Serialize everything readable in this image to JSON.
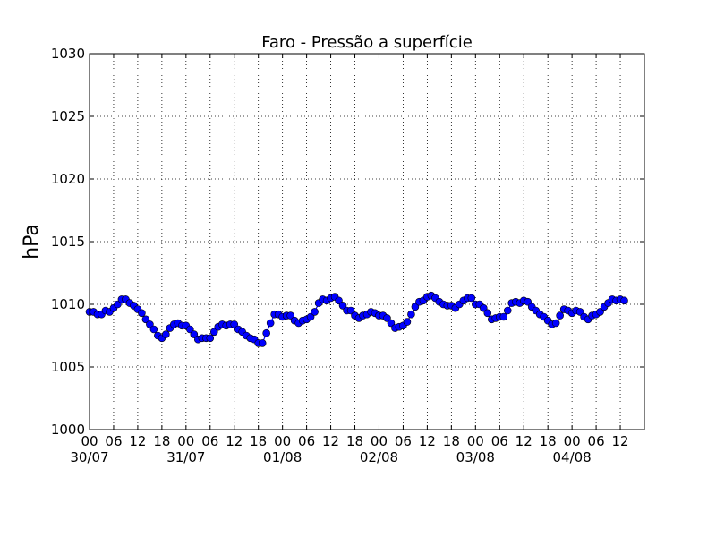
{
  "chart_data": {
    "type": "line",
    "title": "Faro - Pressão a superfície",
    "ylabel": "hPa",
    "xlabel": "",
    "ylim": [
      1000,
      1030
    ],
    "yticks": [
      1000,
      1005,
      1010,
      1015,
      1020,
      1025,
      1030
    ],
    "xlim_hours": [
      0,
      138
    ],
    "grid": true,
    "marker_color": "#0000ff",
    "line_color": "#0000ff",
    "xtick_labels": [
      "00",
      "06",
      "12",
      "18",
      "00",
      "06",
      "12",
      "18",
      "00",
      "06",
      "12",
      "18",
      "00",
      "06",
      "12",
      "18",
      "00",
      "06",
      "12",
      "18",
      "00",
      "06",
      "12"
    ],
    "date_labels": [
      "30/07",
      "31/07",
      "01/08",
      "02/08",
      "03/08",
      "04/08"
    ],
    "series": [
      {
        "points": [
          [
            0,
            1009.4
          ],
          [
            1,
            1009.4
          ],
          [
            2,
            1009.2
          ],
          [
            3,
            1009.2
          ],
          [
            4,
            1009.5
          ],
          [
            5,
            1009.4
          ],
          [
            6,
            1009.7
          ],
          [
            7,
            1010.0
          ],
          [
            8,
            1010.4
          ],
          [
            9,
            1010.4
          ],
          [
            10,
            1010.1
          ],
          [
            11,
            1009.9
          ],
          [
            12,
            1009.6
          ],
          [
            13,
            1009.3
          ],
          [
            14,
            1008.8
          ],
          [
            15,
            1008.4
          ],
          [
            16,
            1008.0
          ],
          [
            17,
            1007.5
          ],
          [
            18,
            1007.3
          ],
          [
            19,
            1007.6
          ],
          [
            20,
            1008.1
          ],
          [
            21,
            1008.4
          ],
          [
            22,
            1008.5
          ],
          [
            23,
            1008.3
          ],
          [
            24,
            1008.3
          ],
          [
            25,
            1008.0
          ],
          [
            26,
            1007.6
          ],
          [
            27,
            1007.2
          ],
          [
            28,
            1007.3
          ],
          [
            29,
            1007.3
          ],
          [
            30,
            1007.3
          ],
          [
            31,
            1007.8
          ],
          [
            32,
            1008.2
          ],
          [
            33,
            1008.4
          ],
          [
            34,
            1008.3
          ],
          [
            35,
            1008.4
          ],
          [
            36,
            1008.4
          ],
          [
            37,
            1008.0
          ],
          [
            38,
            1007.8
          ],
          [
            39,
            1007.5
          ],
          [
            40,
            1007.3
          ],
          [
            41,
            1007.2
          ],
          [
            42,
            1006.9
          ],
          [
            43,
            1006.9
          ],
          [
            44,
            1007.7
          ],
          [
            45,
            1008.5
          ],
          [
            46,
            1009.2
          ],
          [
            47,
            1009.2
          ],
          [
            48,
            1009.0
          ],
          [
            49,
            1009.1
          ],
          [
            50,
            1009.1
          ],
          [
            51,
            1008.7
          ],
          [
            52,
            1008.5
          ],
          [
            53,
            1008.7
          ],
          [
            54,
            1008.8
          ],
          [
            55,
            1009.0
          ],
          [
            56,
            1009.4
          ],
          [
            57,
            1010.1
          ],
          [
            58,
            1010.4
          ],
          [
            59,
            1010.3
          ],
          [
            60,
            1010.5
          ],
          [
            61,
            1010.6
          ],
          [
            62,
            1010.3
          ],
          [
            63,
            1009.9
          ],
          [
            64,
            1009.5
          ],
          [
            65,
            1009.5
          ],
          [
            66,
            1009.1
          ],
          [
            67,
            1008.9
          ],
          [
            68,
            1009.1
          ],
          [
            69,
            1009.2
          ],
          [
            70,
            1009.4
          ],
          [
            71,
            1009.3
          ],
          [
            72,
            1009.1
          ],
          [
            73,
            1009.1
          ],
          [
            74,
            1008.9
          ],
          [
            75,
            1008.5
          ],
          [
            76,
            1008.1
          ],
          [
            77,
            1008.2
          ],
          [
            78,
            1008.3
          ],
          [
            79,
            1008.6
          ],
          [
            80,
            1009.2
          ],
          [
            81,
            1009.8
          ],
          [
            82,
            1010.2
          ],
          [
            83,
            1010.3
          ],
          [
            84,
            1010.6
          ],
          [
            85,
            1010.7
          ],
          [
            86,
            1010.5
          ],
          [
            87,
            1010.2
          ],
          [
            88,
            1010.0
          ],
          [
            89,
            1009.9
          ],
          [
            90,
            1009.9
          ],
          [
            91,
            1009.7
          ],
          [
            92,
            1010.0
          ],
          [
            93,
            1010.3
          ],
          [
            94,
            1010.5
          ],
          [
            95,
            1010.5
          ],
          [
            96,
            1010.0
          ],
          [
            97,
            1010.0
          ],
          [
            98,
            1009.7
          ],
          [
            99,
            1009.3
          ],
          [
            100,
            1008.8
          ],
          [
            101,
            1008.9
          ],
          [
            102,
            1009.0
          ],
          [
            103,
            1009.0
          ],
          [
            104,
            1009.5
          ],
          [
            105,
            1010.1
          ],
          [
            106,
            1010.2
          ],
          [
            107,
            1010.1
          ],
          [
            108,
            1010.3
          ],
          [
            109,
            1010.2
          ],
          [
            110,
            1009.8
          ],
          [
            111,
            1009.5
          ],
          [
            112,
            1009.2
          ],
          [
            113,
            1009.0
          ],
          [
            114,
            1008.7
          ],
          [
            115,
            1008.4
          ],
          [
            116,
            1008.5
          ],
          [
            117,
            1009.1
          ],
          [
            118,
            1009.6
          ],
          [
            119,
            1009.5
          ],
          [
            120,
            1009.3
          ],
          [
            121,
            1009.5
          ],
          [
            122,
            1009.4
          ],
          [
            123,
            1009.0
          ],
          [
            124,
            1008.8
          ],
          [
            125,
            1009.1
          ],
          [
            126,
            1009.2
          ],
          [
            127,
            1009.4
          ],
          [
            128,
            1009.8
          ],
          [
            129,
            1010.1
          ],
          [
            130,
            1010.4
          ],
          [
            131,
            1010.3
          ],
          [
            132,
            1010.4
          ],
          [
            133,
            1010.3
          ]
        ]
      }
    ]
  }
}
